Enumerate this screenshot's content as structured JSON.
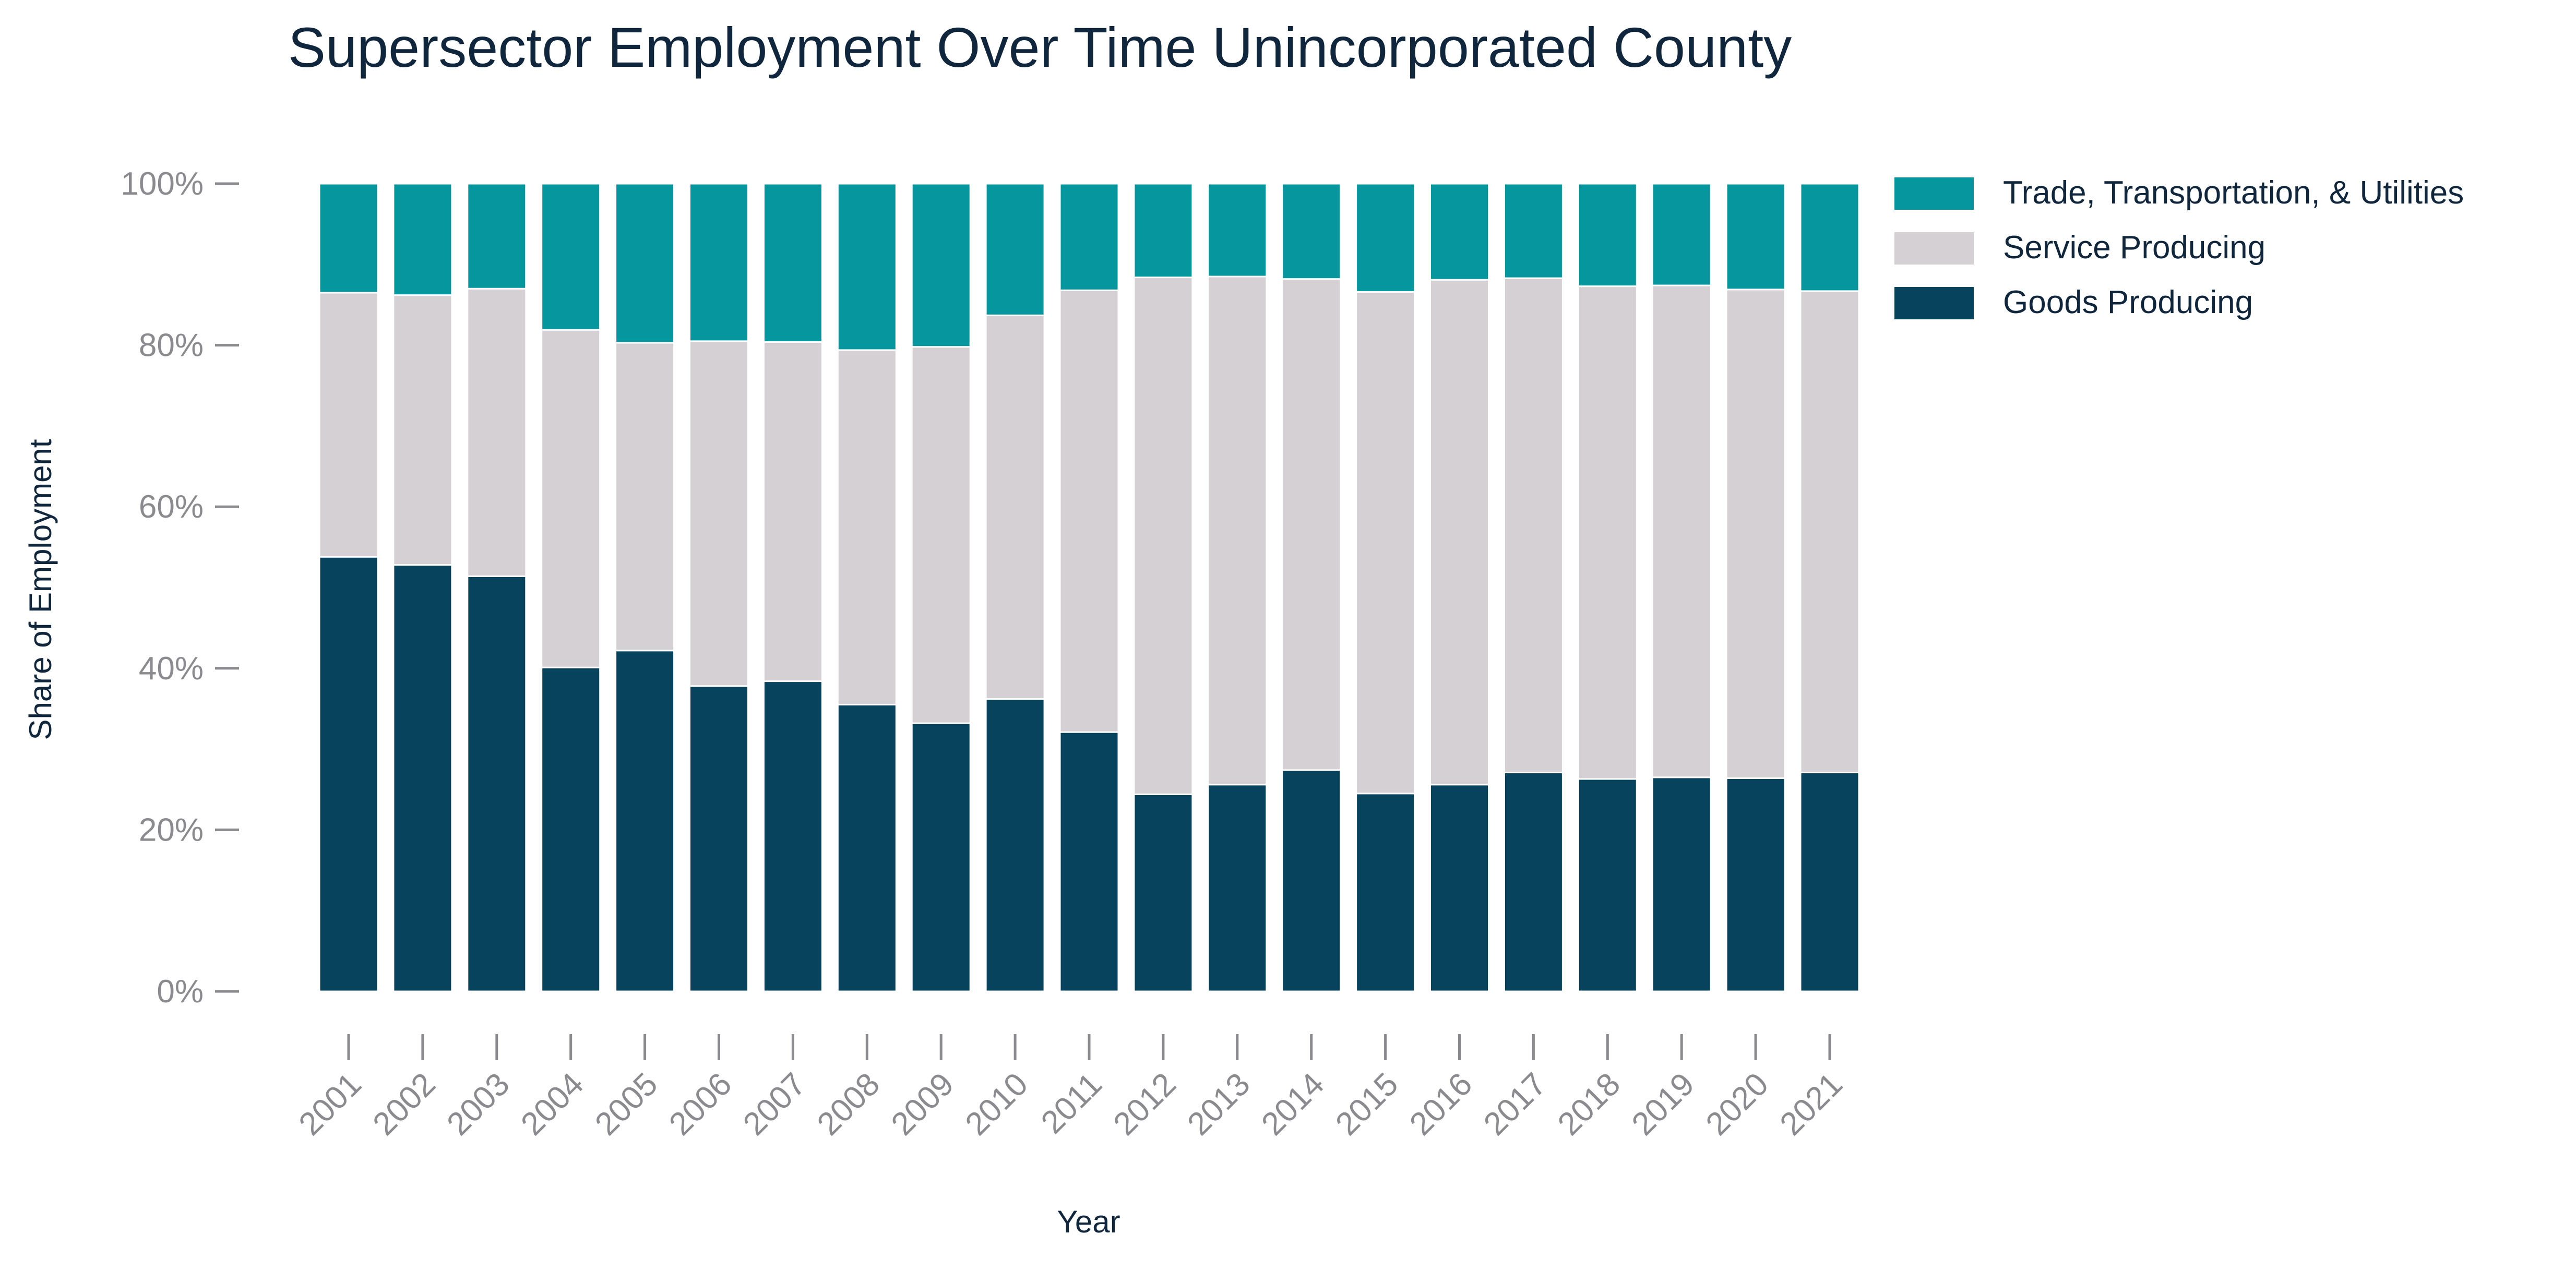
{
  "chart_data": {
    "type": "bar",
    "stacked": true,
    "title": "Supersector Employment Over Time Unincorporated County",
    "xlabel": "Year",
    "ylabel": "Share of Employment",
    "ylim": [
      0,
      100
    ],
    "yticks": [
      "0%",
      "20%",
      "40%",
      "60%",
      "80%",
      "100%"
    ],
    "ytick_values": [
      0,
      20,
      40,
      60,
      80,
      100
    ],
    "categories": [
      "2001",
      "2002",
      "2003",
      "2004",
      "2005",
      "2006",
      "2007",
      "2008",
      "2009",
      "2010",
      "2011",
      "2012",
      "2013",
      "2014",
      "2015",
      "2016",
      "2017",
      "2018",
      "2019",
      "2020",
      "2021"
    ],
    "series": [
      {
        "name": "Goods Producing",
        "color": "#08435e",
        "values": [
          53.8,
          52.8,
          51.4,
          40.1,
          42.2,
          37.8,
          38.4,
          35.5,
          33.2,
          36.2,
          32.1,
          24.4,
          25.6,
          27.4,
          24.5,
          25.6,
          27.1,
          26.3,
          26.5,
          26.4,
          27.1
        ]
      },
      {
        "name": "Service Producing",
        "color": "#d5d0d3",
        "values": [
          32.7,
          33.4,
          35.6,
          41.8,
          38.1,
          42.7,
          42.0,
          43.9,
          46.6,
          47.5,
          54.7,
          64.0,
          62.9,
          60.8,
          62.1,
          62.5,
          61.2,
          61.0,
          60.9,
          60.5,
          59.6
        ]
      },
      {
        "name": "Trade, Transportation, & Utilities",
        "color": "#06979e",
        "values": [
          13.5,
          13.8,
          13.0,
          18.1,
          19.7,
          19.5,
          19.6,
          20.6,
          20.2,
          16.3,
          13.2,
          11.6,
          11.5,
          11.8,
          13.4,
          11.9,
          11.7,
          12.7,
          12.6,
          13.1,
          13.3
        ]
      }
    ],
    "legend": {
      "position": "top-right",
      "entries": [
        "Trade, Transportation, & Utilities",
        "Service Producing",
        "Goods Producing"
      ]
    },
    "grid": false
  }
}
